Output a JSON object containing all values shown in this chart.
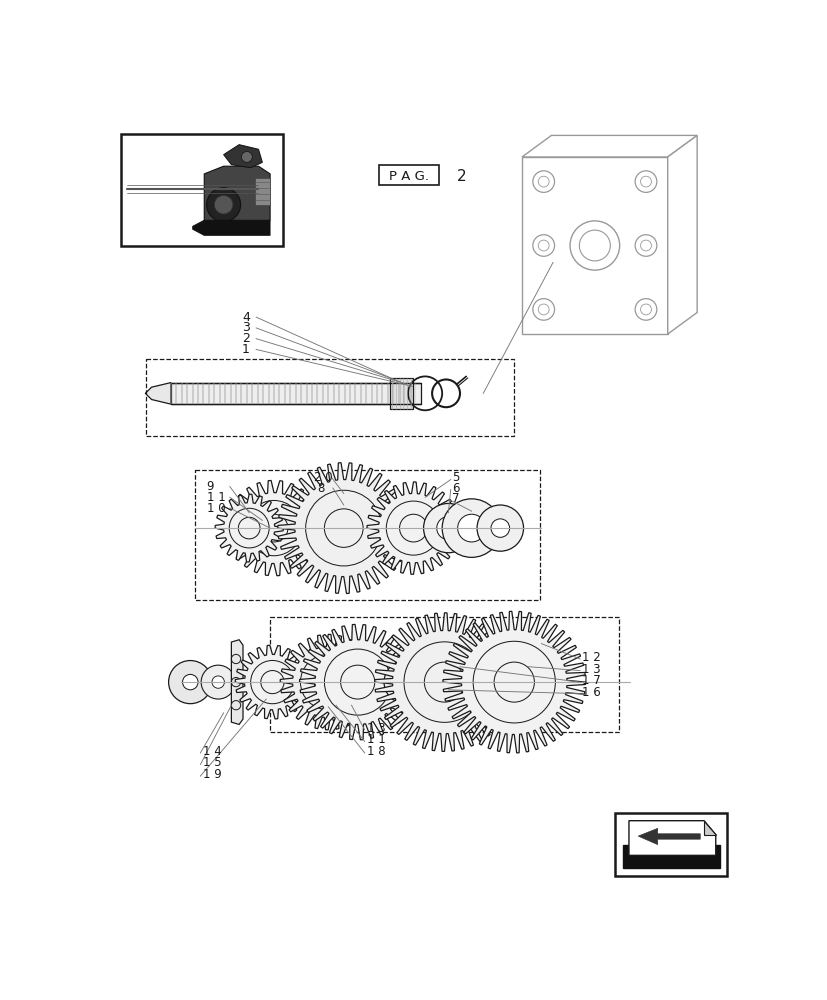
{
  "bg_color": "#ffffff",
  "line_color": "#1a1a1a",
  "gray_color": "#777777",
  "light_gray": "#999999",
  "fig_width": 8.28,
  "fig_height": 10.0,
  "dpi": 100
}
